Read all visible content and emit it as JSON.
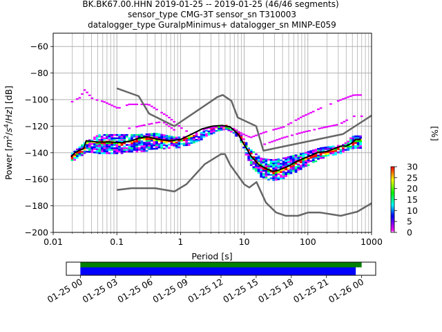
{
  "chart_data": {
    "type": "heatmap",
    "title_lines": [
      "BK.BK67.00.HHN   2019-01-25 -- 2019-01-25  (46/46 segments)",
      "sensor_type CMG-3T sensor_sn T310003",
      "datalogger_type GuralpMinimus+ datalogger_sn MINP-E059"
    ],
    "xlabel": "Period [s]",
    "ylabel": "Power [m²/s⁴/Hz] [dB]",
    "xscale": "log",
    "xlim": [
      0.01,
      1000
    ],
    "ylim": [
      -200,
      -50
    ],
    "grid": true,
    "x_ticks": [
      {
        "value": 0.01,
        "label": "0.01"
      },
      {
        "value": 0.1,
        "label": "0.1"
      },
      {
        "value": 1,
        "label": "1"
      },
      {
        "value": 10,
        "label": "10"
      },
      {
        "value": 100,
        "label": "100"
      },
      {
        "value": 1000,
        "label": "1000"
      }
    ],
    "y_ticks": [
      {
        "value": -60,
        "label": "−60"
      },
      {
        "value": -80,
        "label": "−80"
      },
      {
        "value": -100,
        "label": "−100"
      },
      {
        "value": -120,
        "label": "−120"
      },
      {
        "value": -140,
        "label": "−140"
      },
      {
        "value": -160,
        "label": "−160"
      },
      {
        "value": -180,
        "label": "−180"
      },
      {
        "value": -200,
        "label": "−200"
      }
    ],
    "colorbar": {
      "label": "[%]",
      "range": [
        0,
        30
      ],
      "ticks": [
        "0",
        "5",
        "10",
        "15",
        "20",
        "25",
        "30"
      ],
      "colormap": [
        "#ffffff",
        "#ff00ff",
        "#0000ff",
        "#00ffff",
        "#00ff00",
        "#ffff00",
        "#ff0000"
      ]
    },
    "noise_models": {
      "color": "#666666",
      "high": {
        "periods": [
          0.1,
          0.22,
          0.32,
          0.8,
          3.8,
          4.6,
          6.3,
          7.9,
          15.4,
          20,
          354.8,
          1000
        ],
        "db": [
          -91.5,
          -97.4,
          -110.5,
          -120,
          -98,
          -96.5,
          -101,
          -113.5,
          -120,
          -138.5,
          -126,
          -112
        ]
      },
      "low": {
        "periods": [
          0.1,
          0.17,
          0.4,
          0.8,
          1.24,
          2.4,
          4.3,
          5,
          6,
          10,
          12,
          15.6,
          21.9,
          31.6,
          45,
          70,
          101,
          154,
          328,
          600,
          1000
        ],
        "db": [
          -168,
          -166.7,
          -166.7,
          -169.2,
          -163.7,
          -148.6,
          -141.1,
          -141.1,
          -149,
          -163.8,
          -166.2,
          -162.1,
          -177.5,
          -185,
          -187.5,
          -187.5,
          -185,
          -185,
          -187.5,
          -184.4,
          -178
        ]
      }
    },
    "mean_curve": {
      "color": "#000000",
      "periods": [
        0.019,
        0.022,
        0.026,
        0.03,
        0.033,
        0.05,
        0.08,
        0.12,
        0.17,
        0.22,
        0.3,
        0.45,
        0.7,
        1.0,
        1.5,
        2.2,
        3.2,
        4.5,
        6,
        8,
        10,
        13,
        17,
        22,
        28,
        35,
        50,
        70,
        100,
        140,
        200,
        260,
        330,
        400,
        480,
        560,
        680
      ],
      "db": [
        -143,
        -140,
        -138,
        -137,
        -131,
        -132,
        -132,
        -132.5,
        -131,
        -129,
        -128,
        -130,
        -131,
        -130,
        -126,
        -122,
        -120,
        -119.5,
        -120.5,
        -126,
        -134,
        -143,
        -149,
        -152,
        -154,
        -153,
        -150,
        -146,
        -143,
        -140,
        -139,
        -137,
        -135,
        -135,
        -133,
        -130,
        -130
      ]
    },
    "density_band": {
      "periods": [
        0.019,
        0.03,
        0.05,
        0.1,
        0.2,
        0.4,
        0.8,
        1.5,
        3,
        5,
        8,
        12,
        18,
        28,
        45,
        80,
        150,
        300,
        500,
        680
      ],
      "upper_db": [
        -140,
        -132,
        -126,
        -126,
        -126,
        -125,
        -128,
        -127,
        -121,
        -119,
        -124,
        -137,
        -144,
        -145,
        -143,
        -140,
        -136,
        -134,
        -127,
        -127
      ],
      "lower_db": [
        -146,
        -140,
        -140,
        -140,
        -139,
        -137,
        -136,
        -133,
        -125,
        -122,
        -128,
        -149,
        -158,
        -161,
        -158,
        -151,
        -144,
        -140,
        -136,
        -136
      ]
    },
    "outlier_traces": {
      "color": "#e600ff",
      "upper": {
        "periods": [
          0.019,
          0.025,
          0.03,
          0.04,
          0.06,
          0.1,
          0.15,
          0.3,
          0.6,
          1.0,
          1.5,
          2.5,
          4,
          6,
          8,
          12,
          20,
          40,
          80,
          150,
          300,
          500,
          680
        ],
        "db": [
          -101,
          -98,
          -92,
          -99,
          -101,
          -106,
          -103,
          -103,
          -112,
          -121,
          -126,
          -121,
          -120,
          -120,
          -124,
          -128,
          -124,
          -120,
          -112,
          -106,
          -100,
          -96,
          -96
        ]
      },
      "lower_mid": {
        "periods": [
          0.15,
          0.3,
          0.5,
          0.8
        ],
        "db": [
          -121,
          -118,
          -116,
          -123
        ]
      },
      "mid": {
        "periods": [
          20,
          40,
          80,
          150,
          300,
          500,
          680
        ],
        "db": [
          -133,
          -128,
          -124,
          -121,
          -118,
          -112,
          -112
        ]
      }
    }
  },
  "timeline": {
    "tick_labels": [
      "01-25 00",
      "01-25 03",
      "01-25 06",
      "01-25 09",
      "01-25 12",
      "01-25 15",
      "01-25 18",
      "01-25 21",
      "01-26 00"
    ],
    "range_hours": [
      -1.2,
      25.2
    ],
    "segments_used": {
      "color": "#008000",
      "start_hour": 0,
      "end_hour": 24
    },
    "segments_processed": {
      "color": "#0000ff",
      "start_hour": 0,
      "end_hour": 23.5
    }
  }
}
